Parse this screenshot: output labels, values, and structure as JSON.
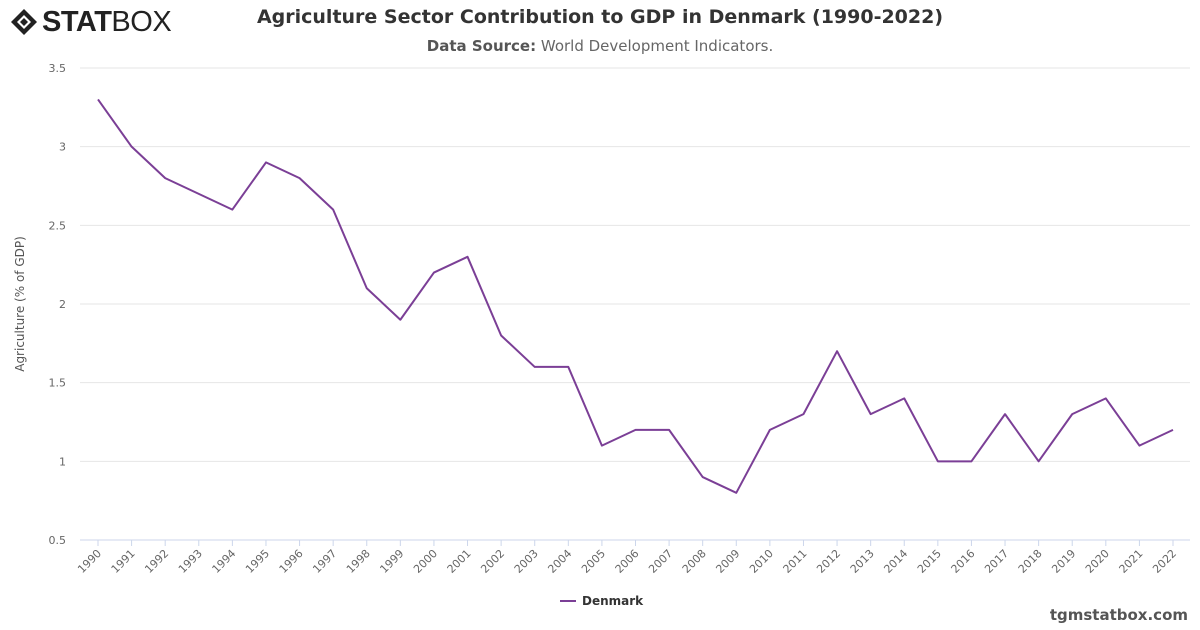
{
  "logo": {
    "text_bold": "STAT",
    "text_light": "BOX"
  },
  "header": {
    "title": "Agriculture Sector Contribution to GDP in Denmark (1990-2022)",
    "subtitle_label": "Data Source:",
    "subtitle_value": "World Development Indicators."
  },
  "credit": "tgmstatbox.com",
  "chart_data": {
    "type": "line",
    "title": "Agriculture Sector Contribution to GDP in Denmark (1990-2022)",
    "xlabel": "",
    "ylabel": "Agriculture (% of GDP)",
    "ylim": [
      0.5,
      3.5
    ],
    "yticks": [
      "0.5",
      "1",
      "1.5",
      "2",
      "2.5",
      "3",
      "3.5"
    ],
    "grid": true,
    "legend": "bottom-center",
    "color": "#7b3f96",
    "x": [
      "1990",
      "1991",
      "1992",
      "1993",
      "1994",
      "1995",
      "1996",
      "1997",
      "1998",
      "1999",
      "2000",
      "2001",
      "2002",
      "2003",
      "2004",
      "2005",
      "2006",
      "2007",
      "2008",
      "2009",
      "2010",
      "2011",
      "2012",
      "2013",
      "2014",
      "2015",
      "2016",
      "2017",
      "2018",
      "2019",
      "2020",
      "2021",
      "2022"
    ],
    "series": [
      {
        "name": "Denmark",
        "values": [
          3.3,
          3.0,
          2.8,
          2.7,
          2.6,
          2.9,
          2.8,
          2.6,
          2.1,
          1.9,
          2.2,
          2.3,
          1.8,
          1.6,
          1.6,
          1.1,
          1.2,
          1.2,
          0.9,
          0.8,
          1.2,
          1.3,
          1.7,
          1.3,
          1.4,
          1.0,
          1.0,
          1.3,
          1.0,
          1.3,
          1.4,
          1.1,
          1.2
        ]
      }
    ]
  }
}
